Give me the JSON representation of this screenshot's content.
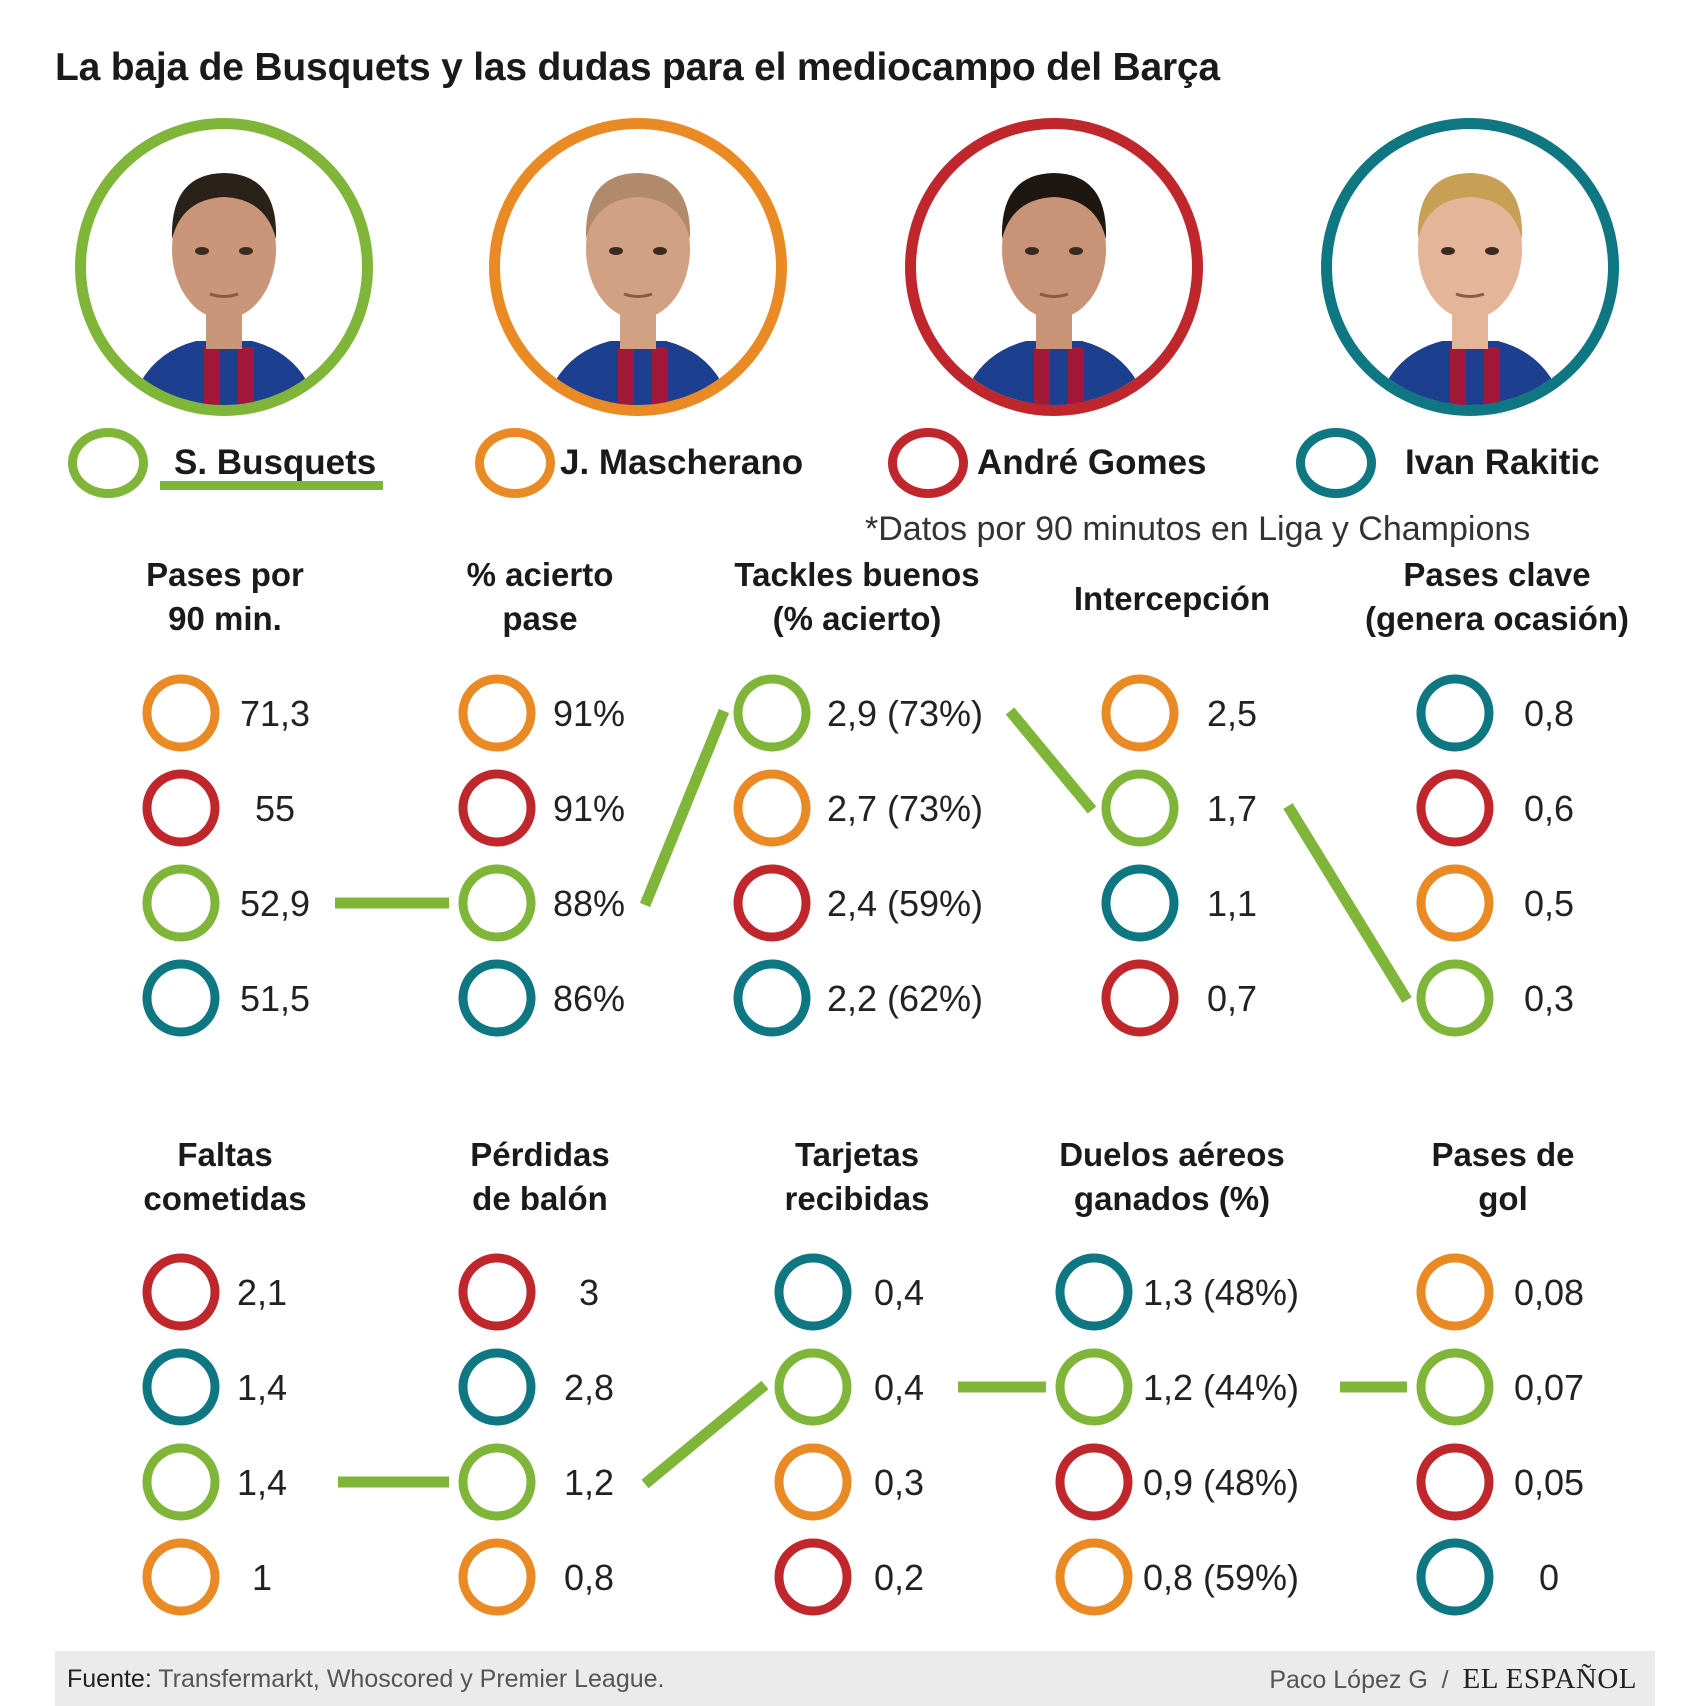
{
  "title": "La baja de Busquets y las dudas para el mediocampo del Barça",
  "note": "*Datos por 90 minutos en Liga y Champions",
  "colors": {
    "busquets": "#7fb539",
    "mascherano": "#ea8a24",
    "gomes": "#c0272d",
    "rakitic": "#0f7782"
  },
  "players": [
    {
      "key": "busquets",
      "name": "S. Busquets",
      "color": "#7fb539",
      "highlighted": true
    },
    {
      "key": "mascherano",
      "name": "J. Mascherano",
      "color": "#ea8a24"
    },
    {
      "key": "gomes",
      "name": "André Gomes",
      "color": "#c0272d"
    },
    {
      "key": "rakitic",
      "name": "Ivan Rakitic",
      "color": "#0f7782"
    }
  ],
  "chart_data": [
    {
      "type": "table",
      "title": [
        "Pases por",
        "90 min."
      ],
      "entries": [
        {
          "player": "mascherano",
          "value": 71.3,
          "label": "71,3"
        },
        {
          "player": "gomes",
          "value": 55,
          "label": "55"
        },
        {
          "player": "busquets",
          "value": 52.9,
          "label": "52,9"
        },
        {
          "player": "rakitic",
          "value": 51.5,
          "label": "51,5"
        }
      ]
    },
    {
      "type": "table",
      "title": [
        "% acierto",
        "pase"
      ],
      "entries": [
        {
          "player": "mascherano",
          "value": 91,
          "label": "91%"
        },
        {
          "player": "gomes",
          "value": 91,
          "label": "91%"
        },
        {
          "player": "busquets",
          "value": 88,
          "label": "88%"
        },
        {
          "player": "rakitic",
          "value": 86,
          "label": "86%"
        }
      ]
    },
    {
      "type": "table",
      "title": [
        "Tackles buenos",
        "(% acierto)"
      ],
      "entries": [
        {
          "player": "busquets",
          "value": 2.9,
          "pct": 73,
          "label": "2,9 (73%)"
        },
        {
          "player": "mascherano",
          "value": 2.7,
          "pct": 73,
          "label": "2,7 (73%)"
        },
        {
          "player": "gomes",
          "value": 2.4,
          "pct": 59,
          "label": "2,4 (59%)"
        },
        {
          "player": "rakitic",
          "value": 2.2,
          "pct": 62,
          "label": "2,2 (62%)"
        }
      ]
    },
    {
      "type": "table",
      "title": [
        "Intercepción"
      ],
      "entries": [
        {
          "player": "mascherano",
          "value": 2.5,
          "label": "2,5"
        },
        {
          "player": "busquets",
          "value": 1.7,
          "label": "1,7"
        },
        {
          "player": "rakitic",
          "value": 1.1,
          "label": "1,1"
        },
        {
          "player": "gomes",
          "value": 0.7,
          "label": "0,7"
        }
      ]
    },
    {
      "type": "table",
      "title": [
        "Pases clave",
        "(genera ocasión)"
      ],
      "entries": [
        {
          "player": "rakitic",
          "value": 0.8,
          "label": "0,8"
        },
        {
          "player": "gomes",
          "value": 0.6,
          "label": "0,6"
        },
        {
          "player": "mascherano",
          "value": 0.5,
          "label": "0,5"
        },
        {
          "player": "busquets",
          "value": 0.3,
          "label": "0,3"
        }
      ]
    },
    {
      "type": "table",
      "title": [
        "Faltas",
        "cometidas"
      ],
      "entries": [
        {
          "player": "gomes",
          "value": 2.1,
          "label": "2,1"
        },
        {
          "player": "rakitic",
          "value": 1.4,
          "label": "1,4"
        },
        {
          "player": "busquets",
          "value": 1.4,
          "label": "1,4"
        },
        {
          "player": "mascherano",
          "value": 1,
          "label": "1"
        }
      ]
    },
    {
      "type": "table",
      "title": [
        "Pérdidas",
        "de balón"
      ],
      "entries": [
        {
          "player": "gomes",
          "value": 3,
          "label": "3"
        },
        {
          "player": "rakitic",
          "value": 2.8,
          "label": "2,8"
        },
        {
          "player": "busquets",
          "value": 1.2,
          "label": "1,2"
        },
        {
          "player": "mascherano",
          "value": 0.8,
          "label": "0,8"
        }
      ]
    },
    {
      "type": "table",
      "title": [
        "Tarjetas",
        "recibidas"
      ],
      "entries": [
        {
          "player": "rakitic",
          "value": 0.4,
          "label": "0,4"
        },
        {
          "player": "busquets",
          "value": 0.4,
          "label": "0,4"
        },
        {
          "player": "mascherano",
          "value": 0.3,
          "label": "0,3"
        },
        {
          "player": "gomes",
          "value": 0.2,
          "label": "0,2"
        }
      ]
    },
    {
      "type": "table",
      "title": [
        "Duelos aéreos",
        "ganados (%)"
      ],
      "entries": [
        {
          "player": "rakitic",
          "value": 1.3,
          "pct": 48,
          "label": "1,3 (48%)"
        },
        {
          "player": "busquets",
          "value": 1.2,
          "pct": 44,
          "label": "1,2 (44%)"
        },
        {
          "player": "gomes",
          "value": 0.9,
          "pct": 48,
          "label": "0,9 (48%)"
        },
        {
          "player": "mascherano",
          "value": 0.8,
          "pct": 59,
          "label": "0,8 (59%)"
        }
      ]
    },
    {
      "type": "table",
      "title": [
        "Pases de",
        "gol"
      ],
      "entries": [
        {
          "player": "mascherano",
          "value": 0.08,
          "label": "0,08"
        },
        {
          "player": "busquets",
          "value": 0.07,
          "label": "0,07"
        },
        {
          "player": "gomes",
          "value": 0.05,
          "label": "0,05"
        },
        {
          "player": "rakitic",
          "value": 0,
          "label": "0"
        }
      ]
    }
  ],
  "footer": {
    "source_label": "Fuente:",
    "source_text": "Transfermarkt, Whoscored y Premier League.",
    "author": "Paco López G",
    "separator": "/",
    "brand": "EL ESPAÑOL"
  }
}
